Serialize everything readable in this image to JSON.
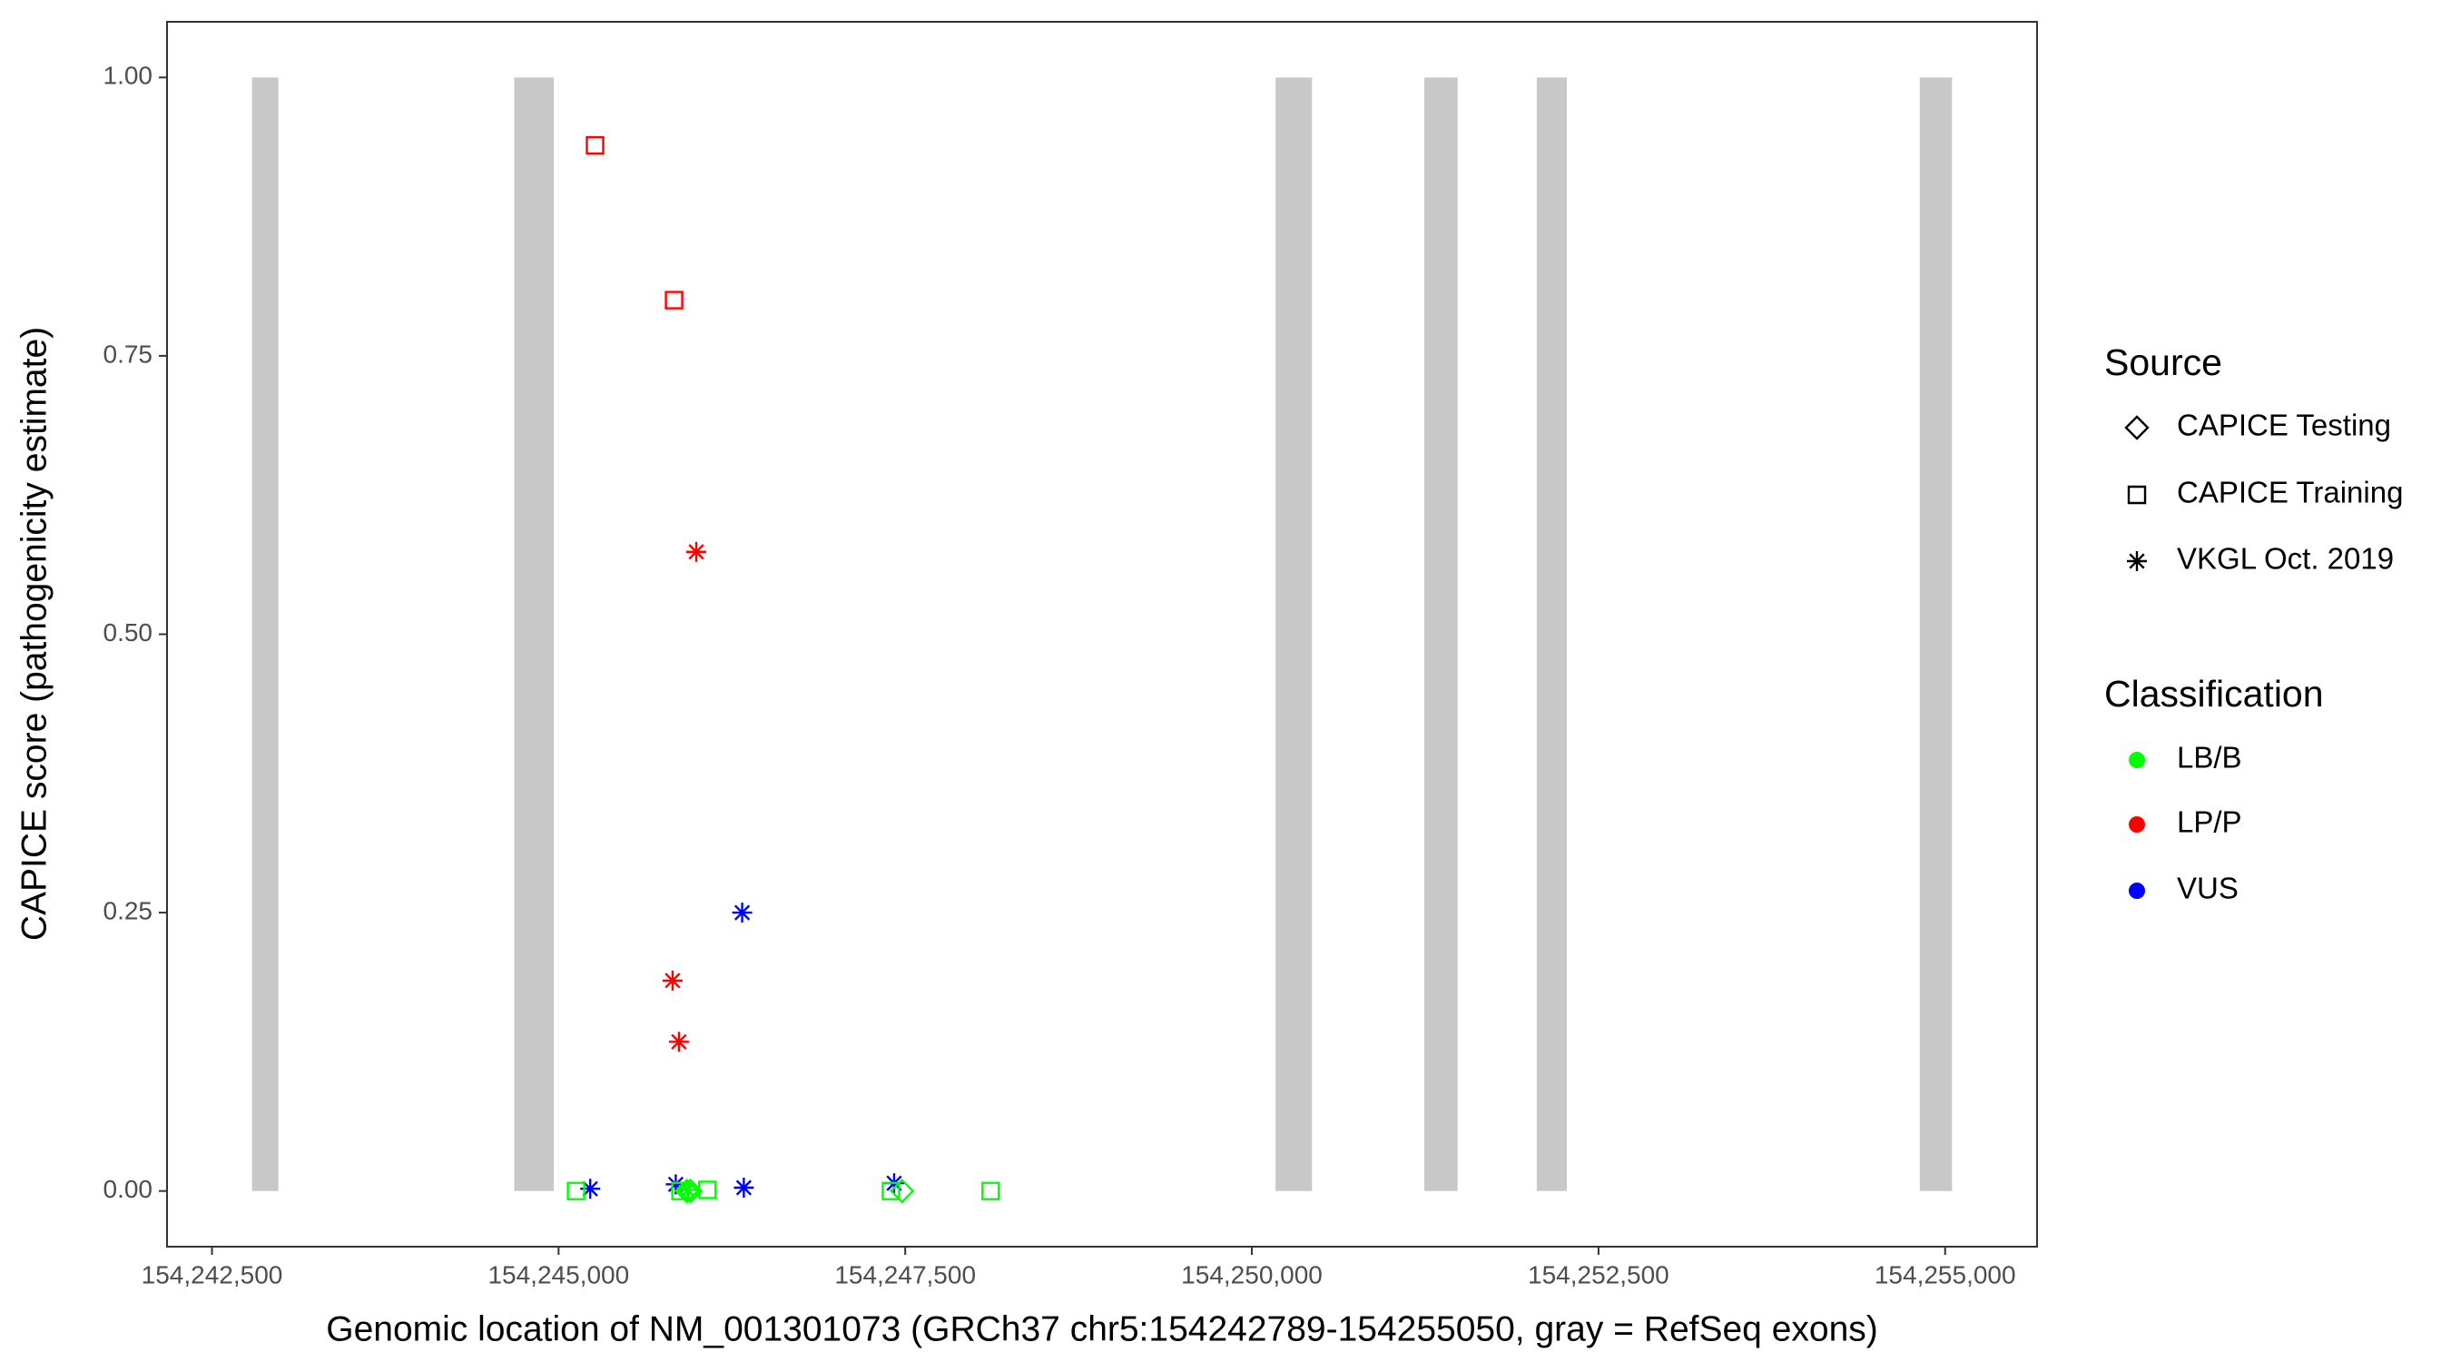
{
  "chart_data": {
    "type": "scatter",
    "x_label": "Genomic location of NM_001301073 (GRCh37 chr5:154242789-154255050, gray = RefSeq exons)",
    "y_label": "CAPICE score (pathogenicity estimate)",
    "xlim": [
      154242176,
      154255663
    ],
    "ylim": [
      -0.05,
      1.05
    ],
    "xticks": [
      {
        "value": 154242500,
        "label": "154,242,500"
      },
      {
        "value": 154245000,
        "label": "154,245,000"
      },
      {
        "value": 154247500,
        "label": "154,247,500"
      },
      {
        "value": 154250000,
        "label": "154,250,000"
      },
      {
        "value": 154252500,
        "label": "154,252,500"
      },
      {
        "value": 154255000,
        "label": "154,255,000"
      }
    ],
    "yticks": [
      {
        "value": 0,
        "label": "0.00"
      },
      {
        "value": 0.25,
        "label": "0.25"
      },
      {
        "value": 0.5,
        "label": "0.50"
      },
      {
        "value": 0.75,
        "label": "0.75"
      },
      {
        "value": 1,
        "label": "1.00"
      }
    ],
    "grid": false,
    "exon_color": "#c8c8c8",
    "exons": [
      [
        154242789,
        154242979
      ],
      [
        154244680,
        154244966
      ],
      [
        154250171,
        154250434
      ],
      [
        154251244,
        154251484
      ],
      [
        154252055,
        154252272
      ],
      [
        154254817,
        154255050
      ]
    ],
    "shape_legend": {
      "title": "Source",
      "items": [
        {
          "name": "CAPICE Testing",
          "shape": "diamond"
        },
        {
          "name": "CAPICE Training",
          "shape": "square"
        },
        {
          "name": "VKGL Oct. 2019",
          "shape": "asterisk"
        }
      ]
    },
    "color_legend": {
      "title": "Classification",
      "items": [
        {
          "name": "LB/B",
          "color": "#00ff00"
        },
        {
          "name": "LP/P",
          "color": "#ff0000"
        },
        {
          "name": "VUS",
          "color": "#0000ff"
        }
      ]
    },
    "series": [
      {
        "source": "CAPICE Training",
        "classification": "LP/P",
        "x": [
          154245263,
          154245833
        ],
        "y": [
          0.939,
          0.8
        ]
      },
      {
        "source": "VKGL Oct. 2019",
        "classification": "LP/P",
        "x": [
          154245993,
          154245822,
          154245868
        ],
        "y": [
          0.574,
          0.189,
          0.134
        ]
      },
      {
        "source": "VKGL Oct. 2019",
        "classification": "VUS",
        "x": [
          154246324,
          154245228,
          154245845,
          154246336,
          154247420
        ],
        "y": [
          0.25,
          0.002,
          0.006,
          0.003,
          0.007
        ]
      },
      {
        "source": "CAPICE Training",
        "classification": "LB/B",
        "x": [
          154245126,
          154246073,
          154248116,
          154247397,
          154245879
        ],
        "y": [
          0,
          0.001,
          0,
          0,
          0
        ]
      },
      {
        "source": "CAPICE Testing",
        "classification": "LB/B",
        "x": [
          154245925,
          154247477,
          154245950
        ],
        "y": [
          0,
          0,
          0
        ]
      },
      {
        "source": "VKGL Oct. 2019",
        "classification": "LB/B",
        "x": [
          154245930
        ],
        "y": [
          0.001
        ]
      }
    ]
  }
}
